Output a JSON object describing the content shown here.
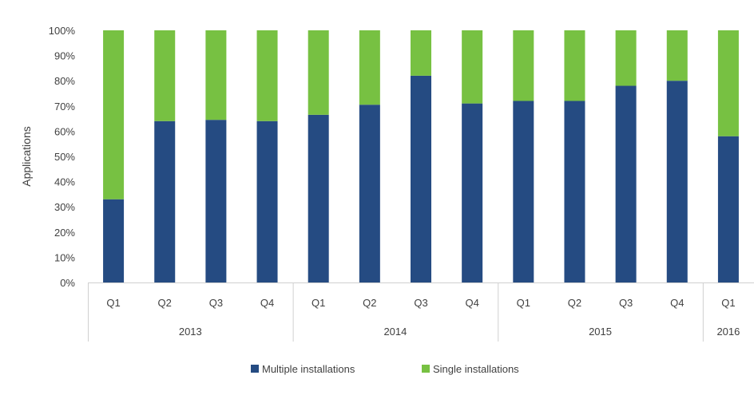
{
  "chart_data": {
    "type": "bar",
    "stacked": true,
    "percent": true,
    "title": "",
    "xlabel": "",
    "ylabel": "Applications",
    "ylim": [
      0,
      100
    ],
    "yticks": [
      "0%",
      "10%",
      "20%",
      "30%",
      "40%",
      "50%",
      "60%",
      "70%",
      "80%",
      "90%",
      "100%"
    ],
    "categories": [
      "Q1",
      "Q2",
      "Q3",
      "Q4",
      "Q1",
      "Q2",
      "Q3",
      "Q4",
      "Q1",
      "Q2",
      "Q3",
      "Q4",
      "Q1"
    ],
    "groups": [
      {
        "label": "2013",
        "count": 4
      },
      {
        "label": "2014",
        "count": 4
      },
      {
        "label": "2015",
        "count": 4
      },
      {
        "label": "2016",
        "count": 1
      }
    ],
    "series": [
      {
        "name": "Multiple installations",
        "color": "#254b82",
        "values": [
          33,
          64,
          64.5,
          64,
          66.5,
          70.5,
          82,
          71,
          72,
          72,
          78,
          80,
          58
        ]
      },
      {
        "name": "Single installations",
        "color": "#77c142",
        "values": [
          67,
          36,
          35.5,
          36,
          33.5,
          29.5,
          18,
          29,
          28,
          28,
          22,
          20,
          42
        ]
      }
    ],
    "grid": false,
    "legend_position": "bottom"
  }
}
